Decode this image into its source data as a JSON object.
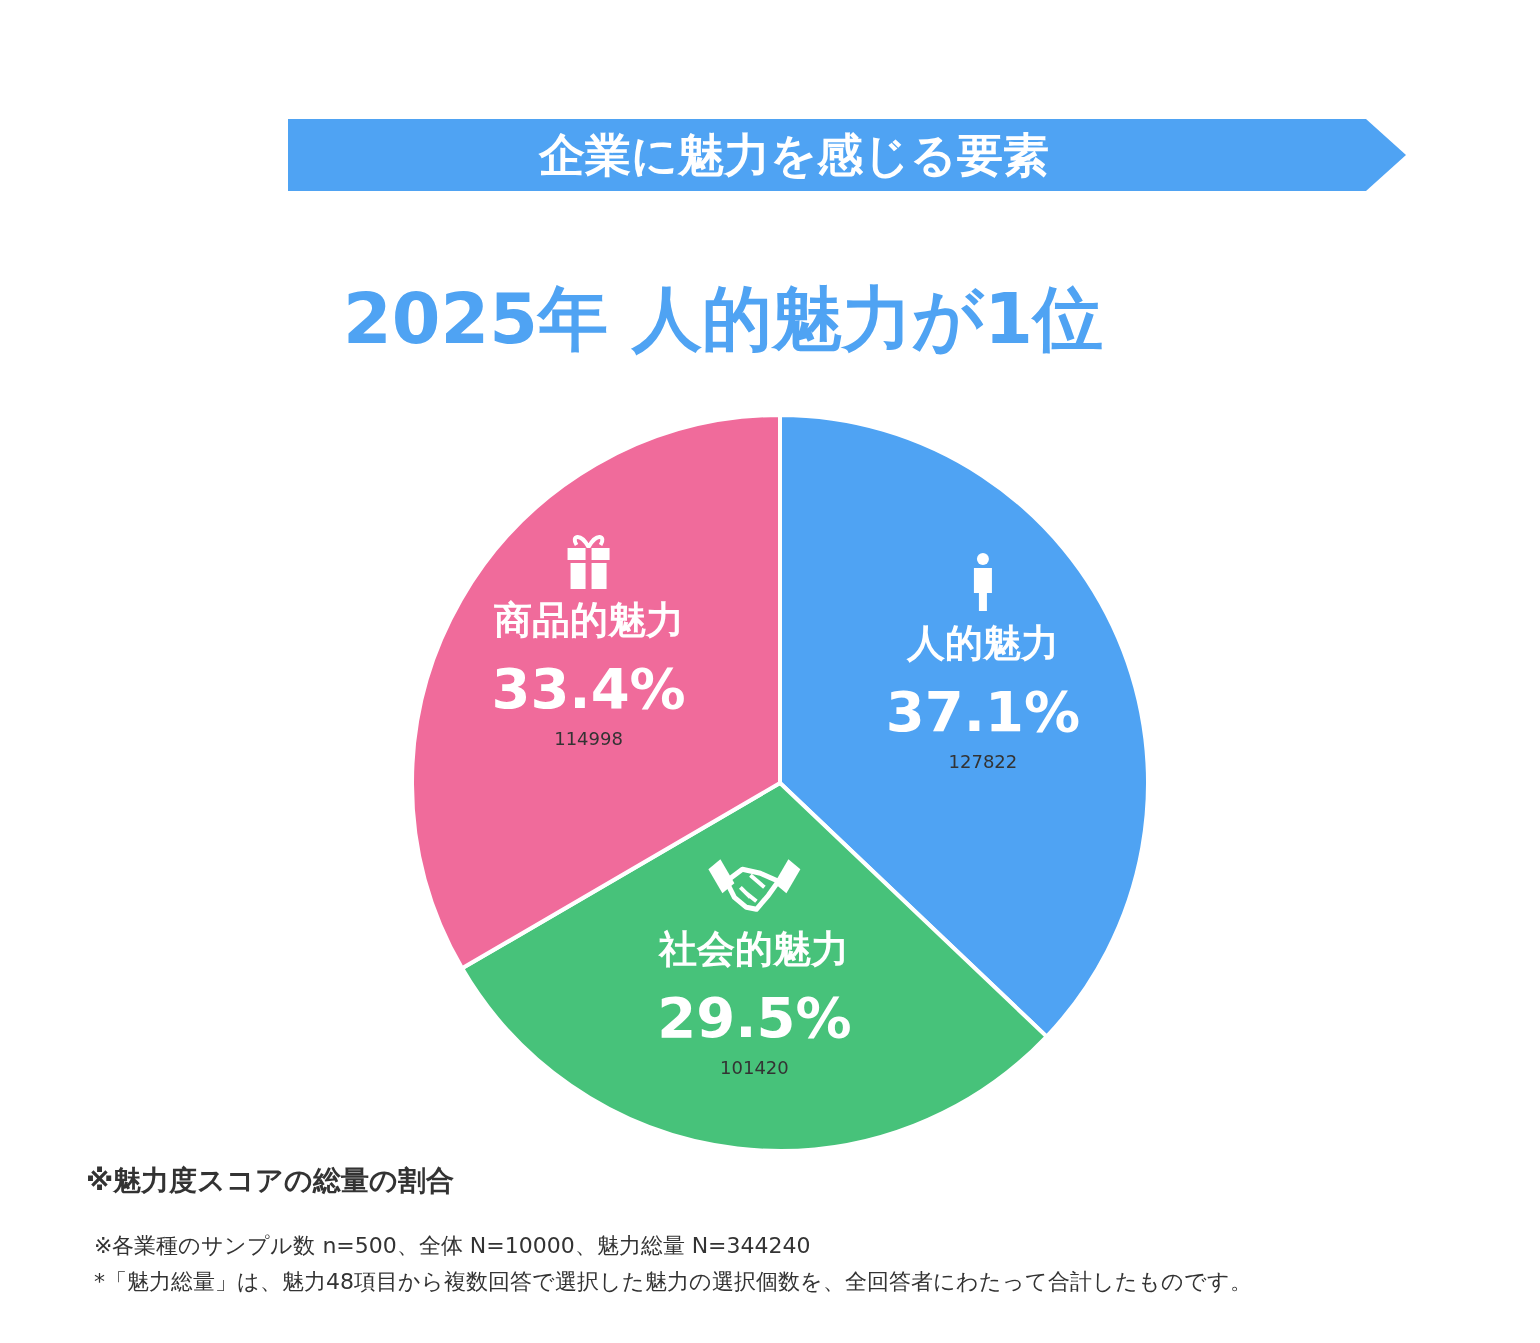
{
  "chart_data": {
    "type": "pie",
    "title": "企業に魅力を感じる要素",
    "subtitle": "2025年 人的魅力が1位",
    "categories": [
      "人的魅力",
      "社会的魅力",
      "商品的魅力"
    ],
    "values": [
      37.1,
      29.5,
      33.4
    ],
    "value_labels": [
      "37.1%",
      "29.5%",
      "33.4%"
    ],
    "colors": [
      "#4fa3f3",
      "#47c27a",
      "#f06b9b"
    ],
    "annotations": [
      {
        "text": "127822",
        "x": "人的魅力"
      },
      {
        "text": "101420",
        "x": "社会的魅力"
      },
      {
        "text": "114998",
        "x": "商品的魅力"
      },
      "※魅力度スコアの総量の割合",
      "※各業種のサンプル数 n=500、全体 N=10000、魅力総量 N=344240",
      "*「魅力総量」は、魅力48項目から複数回答で選択した魅力の選択個数を、全回答者にわたって合計したものです。"
    ]
  }
}
